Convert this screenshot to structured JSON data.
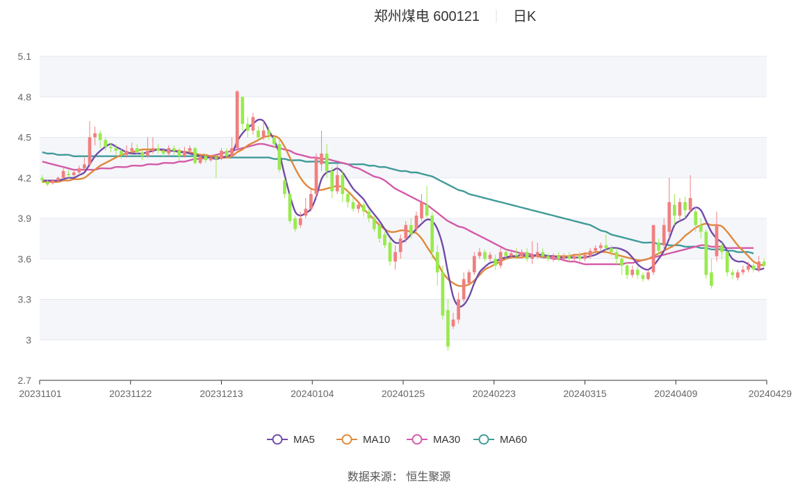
{
  "title": {
    "stock": "郑州煤电 600121",
    "period": "日K"
  },
  "source": "数据来源：  恒生聚源",
  "legend": [
    {
      "name": "MA5",
      "color": "#6f4aa8"
    },
    {
      "name": "MA10",
      "color": "#e0883a"
    },
    {
      "name": "MA30",
      "color": "#d35aa8"
    },
    {
      "name": "MA60",
      "color": "#3f9a98"
    }
  ],
  "colors": {
    "up": "#f07f7f",
    "down": "#99ea4e"
  },
  "chart_data": {
    "type": "candlestick",
    "title": "郑州煤电 600121 日K",
    "ylim": [
      2.7,
      5.1
    ],
    "y_ticks": [
      "2.7",
      "3",
      "3.3",
      "3.6",
      "3.9",
      "4.2",
      "4.5",
      "4.8",
      "5.1"
    ],
    "x_ticks": [
      "20231101",
      "20231122",
      "20231213",
      "20240104",
      "20240125",
      "20240223",
      "20240315",
      "20240409",
      "20240429"
    ],
    "grid": true,
    "legend_position": "bottom",
    "candles": [
      [
        4.2,
        4.18,
        4.22,
        4.16
      ],
      [
        4.17,
        4.15,
        4.19,
        4.14
      ],
      [
        4.16,
        4.18,
        4.19,
        4.15
      ],
      [
        4.18,
        4.2,
        4.21,
        4.17
      ],
      [
        4.2,
        4.25,
        4.27,
        4.19
      ],
      [
        4.23,
        4.22,
        4.26,
        4.2
      ],
      [
        4.22,
        4.24,
        4.26,
        4.21
      ],
      [
        4.24,
        4.27,
        4.29,
        4.22
      ],
      [
        4.27,
        4.3,
        4.35,
        4.25
      ],
      [
        4.3,
        4.5,
        4.62,
        4.28
      ],
      [
        4.5,
        4.53,
        4.58,
        4.44
      ],
      [
        4.53,
        4.48,
        4.55,
        4.42
      ],
      [
        4.48,
        4.43,
        4.5,
        4.4
      ],
      [
        4.43,
        4.42,
        4.46,
        4.39
      ],
      [
        4.42,
        4.4,
        4.45,
        4.37
      ],
      [
        4.4,
        4.37,
        4.42,
        4.34
      ],
      [
        4.37,
        4.4,
        4.44,
        4.35
      ],
      [
        4.4,
        4.42,
        4.46,
        4.38
      ],
      [
        4.42,
        4.39,
        4.45,
        4.36
      ],
      [
        4.39,
        4.36,
        4.41,
        4.33
      ],
      [
        4.36,
        4.4,
        4.5,
        4.35
      ],
      [
        4.4,
        4.42,
        4.5,
        4.38
      ],
      [
        4.42,
        4.4,
        4.45,
        4.38
      ],
      [
        4.4,
        4.38,
        4.42,
        4.35
      ],
      [
        4.38,
        4.42,
        4.44,
        4.36
      ],
      [
        4.42,
        4.4,
        4.44,
        4.37
      ],
      [
        4.4,
        4.36,
        4.42,
        4.33
      ],
      [
        4.36,
        4.4,
        4.43,
        4.35
      ],
      [
        4.4,
        4.42,
        4.44,
        4.38
      ],
      [
        4.42,
        4.31,
        4.43,
        4.3
      ],
      [
        4.31,
        4.36,
        4.38,
        4.3
      ],
      [
        4.36,
        4.33,
        4.38,
        4.31
      ],
      [
        4.33,
        4.35,
        4.37,
        4.32
      ],
      [
        4.35,
        4.34,
        4.37,
        4.2
      ],
      [
        4.34,
        4.4,
        4.42,
        4.33
      ],
      [
        4.4,
        4.36,
        4.42,
        4.35
      ],
      [
        4.36,
        4.42,
        4.5,
        4.35
      ],
      [
        4.42,
        4.84,
        4.85,
        4.4
      ],
      [
        4.8,
        4.6,
        4.8,
        4.55
      ],
      [
        4.6,
        4.55,
        4.65,
        4.5
      ],
      [
        4.55,
        4.65,
        4.68,
        4.52
      ],
      [
        4.55,
        4.5,
        4.58,
        4.48
      ],
      [
        4.5,
        4.55,
        4.62,
        4.48
      ],
      [
        4.55,
        4.52,
        4.58,
        4.48
      ],
      [
        4.5,
        4.45,
        4.5,
        4.42
      ],
      [
        4.45,
        4.26,
        4.48,
        4.24
      ],
      [
        4.18,
        4.08,
        4.2,
        4.05
      ],
      [
        4.08,
        3.88,
        4.1,
        3.86
      ],
      [
        3.9,
        3.82,
        3.92,
        3.8
      ],
      [
        3.85,
        3.9,
        3.95,
        3.83
      ],
      [
        3.92,
        3.97,
        4.05,
        3.9
      ],
      [
        3.97,
        4.08,
        4.12,
        3.95
      ],
      [
        4.08,
        4.35,
        4.38,
        4.05
      ],
      [
        4.3,
        4.38,
        4.55,
        4.25
      ],
      [
        4.38,
        4.25,
        4.45,
        4.2
      ],
      [
        4.25,
        4.1,
        4.28,
        4.05
      ],
      [
        4.1,
        4.22,
        4.3,
        4.08
      ],
      [
        4.22,
        4.08,
        4.25,
        4.02
      ],
      [
        4.08,
        4.02,
        4.1,
        3.98
      ],
      [
        4.02,
        3.97,
        4.05,
        3.95
      ],
      [
        3.97,
        4.0,
        4.03,
        3.94
      ],
      [
        4.0,
        3.95,
        4.02,
        3.91
      ],
      [
        3.95,
        3.9,
        3.97,
        3.87
      ],
      [
        3.9,
        3.82,
        3.92,
        3.8
      ],
      [
        3.85,
        3.75,
        3.85,
        3.72
      ],
      [
        3.78,
        3.7,
        3.8,
        3.68
      ],
      [
        3.72,
        3.58,
        3.75,
        3.55
      ],
      [
        3.58,
        3.65,
        3.7,
        3.52
      ],
      [
        3.65,
        3.75,
        3.78,
        3.6
      ],
      [
        3.75,
        3.85,
        3.88,
        3.72
      ],
      [
        3.85,
        3.78,
        3.9,
        3.75
      ],
      [
        3.82,
        3.92,
        3.95,
        3.8
      ],
      [
        3.9,
        4.02,
        4.08,
        3.88
      ],
      [
        4.0,
        3.92,
        4.14,
        3.9
      ],
      [
        3.92,
        3.65,
        3.95,
        3.6
      ],
      [
        3.65,
        3.5,
        3.7,
        3.4
      ],
      [
        3.5,
        3.18,
        3.55,
        3.15
      ],
      [
        3.22,
        2.95,
        3.3,
        2.92
      ],
      [
        3.1,
        3.15,
        3.2,
        3.08
      ],
      [
        3.15,
        3.3,
        3.35,
        3.12
      ],
      [
        3.3,
        3.45,
        3.5,
        3.28
      ],
      [
        3.42,
        3.5,
        3.52,
        3.4
      ],
      [
        3.5,
        3.62,
        3.65,
        3.48
      ],
      [
        3.62,
        3.65,
        3.68,
        3.6
      ],
      [
        3.65,
        3.6,
        3.67,
        3.58
      ],
      [
        3.6,
        3.63,
        3.65,
        3.58
      ],
      [
        3.6,
        3.55,
        3.63,
        3.52
      ],
      [
        3.55,
        3.65,
        3.68,
        3.53
      ],
      [
        3.65,
        3.62,
        3.67,
        3.6
      ],
      [
        3.62,
        3.64,
        3.66,
        3.6
      ],
      [
        3.63,
        3.62,
        3.68,
        3.6
      ],
      [
        3.62,
        3.65,
        3.67,
        3.6
      ],
      [
        3.65,
        3.6,
        3.68,
        3.58
      ],
      [
        3.6,
        3.63,
        3.73,
        3.56
      ],
      [
        3.62,
        3.65,
        3.72,
        3.6
      ],
      [
        3.65,
        3.62,
        3.68,
        3.6
      ],
      [
        3.62,
        3.6,
        3.64,
        3.58
      ],
      [
        3.6,
        3.62,
        3.64,
        3.58
      ],
      [
        3.62,
        3.6,
        3.65,
        3.58
      ],
      [
        3.6,
        3.62,
        3.64,
        3.58
      ],
      [
        3.62,
        3.6,
        3.65,
        3.58
      ],
      [
        3.6,
        3.62,
        3.63,
        3.58
      ],
      [
        3.62,
        3.6,
        3.65,
        3.58
      ],
      [
        3.6,
        3.63,
        3.65,
        3.58
      ],
      [
        3.62,
        3.66,
        3.68,
        3.6
      ],
      [
        3.66,
        3.68,
        3.7,
        3.64
      ],
      [
        3.68,
        3.7,
        3.72,
        3.66
      ],
      [
        3.7,
        3.68,
        3.78,
        3.66
      ],
      [
        3.68,
        3.65,
        3.7,
        3.62
      ],
      [
        3.65,
        3.6,
        3.68,
        3.56
      ],
      [
        3.6,
        3.55,
        3.62,
        3.48
      ],
      [
        3.55,
        3.48,
        3.58,
        3.45
      ],
      [
        3.48,
        3.52,
        3.55,
        3.46
      ],
      [
        3.52,
        3.48,
        3.55,
        3.45
      ],
      [
        3.48,
        3.45,
        3.5,
        3.43
      ],
      [
        3.45,
        3.5,
        3.52,
        3.44
      ],
      [
        3.5,
        3.85,
        3.85,
        3.48
      ],
      [
        3.72,
        3.66,
        3.75,
        3.63
      ],
      [
        3.7,
        3.85,
        3.9,
        3.66
      ],
      [
        3.8,
        4.02,
        4.2,
        3.75
      ],
      [
        4.0,
        3.92,
        4.08,
        3.85
      ],
      [
        3.92,
        4.02,
        4.05,
        3.88
      ],
      [
        4.02,
        3.96,
        4.06,
        3.9
      ],
      [
        3.96,
        4.05,
        4.22,
        3.94
      ],
      [
        3.95,
        3.85,
        3.98,
        3.8
      ],
      [
        3.85,
        3.8,
        3.9,
        3.75
      ],
      [
        3.8,
        3.48,
        3.82,
        3.45
      ],
      [
        3.5,
        3.4,
        3.6,
        3.38
      ],
      [
        3.62,
        3.85,
        3.95,
        3.58
      ],
      [
        3.7,
        3.65,
        3.72,
        3.6
      ],
      [
        3.65,
        3.5,
        3.66,
        3.47
      ],
      [
        3.5,
        3.48,
        3.52,
        3.45
      ],
      [
        3.46,
        3.5,
        3.52,
        3.44
      ],
      [
        3.5,
        3.52,
        3.55,
        3.48
      ],
      [
        3.52,
        3.55,
        3.58,
        3.5
      ],
      [
        3.55,
        3.52,
        3.57,
        3.5
      ],
      [
        3.52,
        3.58,
        3.62,
        3.5
      ],
      [
        3.58,
        3.55,
        3.6,
        3.54
      ]
    ],
    "series": [
      {
        "name": "MA5",
        "values": [
          4.18,
          4.18,
          4.18,
          4.18,
          4.19,
          4.2,
          4.2,
          4.22,
          4.24,
          4.3,
          4.36,
          4.4,
          4.43,
          4.45,
          4.43,
          4.41,
          4.39,
          4.38,
          4.38,
          4.38,
          4.39,
          4.4,
          4.41,
          4.41,
          4.4,
          4.4,
          4.39,
          4.39,
          4.38,
          4.37,
          4.36,
          4.35,
          4.35,
          4.34,
          4.35,
          4.36,
          4.38,
          4.47,
          4.53,
          4.57,
          4.6,
          4.63,
          4.62,
          4.55,
          4.48,
          4.38,
          4.22,
          4.07,
          3.95,
          3.92,
          3.94,
          3.97,
          4.06,
          4.19,
          4.24,
          4.25,
          4.27,
          4.24,
          4.18,
          4.12,
          4.08,
          4.04,
          3.98,
          3.93,
          3.88,
          3.82,
          3.76,
          3.72,
          3.72,
          3.74,
          3.78,
          3.82,
          3.86,
          3.89,
          3.88,
          3.82,
          3.7,
          3.5,
          3.32,
          3.25,
          3.26,
          3.32,
          3.42,
          3.5,
          3.54,
          3.57,
          3.58,
          3.6,
          3.61,
          3.62,
          3.62,
          3.63,
          3.62,
          3.62,
          3.63,
          3.63,
          3.62,
          3.62,
          3.61,
          3.61,
          3.61,
          3.61,
          3.61,
          3.61,
          3.62,
          3.63,
          3.65,
          3.67,
          3.68,
          3.68,
          3.67,
          3.65,
          3.61,
          3.56,
          3.53,
          3.52,
          3.55,
          3.6,
          3.66,
          3.75,
          3.85,
          3.88,
          3.9,
          3.95,
          3.98,
          3.96,
          3.88,
          3.8,
          3.75,
          3.72,
          3.66,
          3.6,
          3.58,
          3.58,
          3.56,
          3.53,
          3.52,
          3.53
        ]
      },
      {
        "name": "MA10",
        "values": [
          4.17,
          4.17,
          4.17,
          4.17,
          4.18,
          4.18,
          4.19,
          4.19,
          4.2,
          4.23,
          4.26,
          4.29,
          4.31,
          4.33,
          4.35,
          4.37,
          4.38,
          4.39,
          4.4,
          4.41,
          4.41,
          4.41,
          4.41,
          4.4,
          4.4,
          4.4,
          4.4,
          4.39,
          4.39,
          4.38,
          4.37,
          4.37,
          4.36,
          4.36,
          4.35,
          4.35,
          4.36,
          4.39,
          4.41,
          4.44,
          4.46,
          4.48,
          4.5,
          4.51,
          4.51,
          4.49,
          4.43,
          4.35,
          4.27,
          4.2,
          4.15,
          4.12,
          4.11,
          4.11,
          4.12,
          4.13,
          4.14,
          4.13,
          4.1,
          4.06,
          4.02,
          3.97,
          3.93,
          3.89,
          3.85,
          3.82,
          3.8,
          3.8,
          3.81,
          3.81,
          3.8,
          3.79,
          3.75,
          3.69,
          3.63,
          3.57,
          3.5,
          3.45,
          3.42,
          3.4,
          3.4,
          3.41,
          3.44,
          3.48,
          3.52,
          3.54,
          3.56,
          3.58,
          3.6,
          3.61,
          3.61,
          3.61,
          3.62,
          3.62,
          3.62,
          3.62,
          3.62,
          3.62,
          3.62,
          3.62,
          3.62,
          3.63,
          3.63,
          3.64,
          3.64,
          3.65,
          3.65,
          3.65,
          3.64,
          3.63,
          3.62,
          3.61,
          3.6,
          3.59,
          3.59,
          3.6,
          3.62,
          3.64,
          3.66,
          3.68,
          3.7,
          3.73,
          3.77,
          3.8,
          3.83,
          3.85,
          3.86,
          3.85,
          3.85,
          3.84,
          3.8,
          3.75,
          3.7,
          3.66,
          3.62,
          3.58,
          3.56,
          3.55
        ]
      },
      {
        "name": "MA30",
        "values": [
          4.32,
          4.31,
          4.3,
          4.29,
          4.28,
          4.27,
          4.26,
          4.26,
          4.26,
          4.26,
          4.26,
          4.27,
          4.27,
          4.27,
          4.28,
          4.28,
          4.28,
          4.29,
          4.29,
          4.29,
          4.3,
          4.3,
          4.3,
          4.31,
          4.31,
          4.31,
          4.32,
          4.32,
          4.33,
          4.34,
          4.34,
          4.35,
          4.36,
          4.37,
          4.38,
          4.39,
          4.4,
          4.41,
          4.42,
          4.43,
          4.44,
          4.45,
          4.45,
          4.44,
          4.43,
          4.42,
          4.41,
          4.4,
          4.38,
          4.37,
          4.36,
          4.35,
          4.35,
          4.34,
          4.34,
          4.33,
          4.32,
          4.31,
          4.3,
          4.28,
          4.27,
          4.25,
          4.23,
          4.21,
          4.2,
          4.18,
          4.15,
          4.12,
          4.1,
          4.08,
          4.06,
          4.04,
          4.02,
          4.0,
          3.97,
          3.94,
          3.91,
          3.88,
          3.86,
          3.84,
          3.83,
          3.81,
          3.79,
          3.77,
          3.75,
          3.73,
          3.71,
          3.69,
          3.67,
          3.66,
          3.65,
          3.64,
          3.64,
          3.63,
          3.62,
          3.61,
          3.61,
          3.6,
          3.6,
          3.59,
          3.58,
          3.58,
          3.57,
          3.56,
          3.56,
          3.56,
          3.56,
          3.56,
          3.56,
          3.56,
          3.56,
          3.57,
          3.57,
          3.58,
          3.59,
          3.6,
          3.61,
          3.62,
          3.63,
          3.64,
          3.65,
          3.66,
          3.67,
          3.68,
          3.69,
          3.7,
          3.7,
          3.69,
          3.69,
          3.69,
          3.68,
          3.68,
          3.68,
          3.68,
          3.68,
          3.68
        ]
      },
      {
        "name": "MA60",
        "values": [
          4.39,
          4.38,
          4.38,
          4.37,
          4.37,
          4.37,
          4.36,
          4.36,
          4.36,
          4.36,
          4.36,
          4.36,
          4.36,
          4.36,
          4.36,
          4.36,
          4.36,
          4.36,
          4.36,
          4.36,
          4.36,
          4.36,
          4.36,
          4.36,
          4.36,
          4.36,
          4.36,
          4.36,
          4.36,
          4.36,
          4.36,
          4.36,
          4.36,
          4.35,
          4.35,
          4.35,
          4.35,
          4.35,
          4.35,
          4.35,
          4.35,
          4.35,
          4.35,
          4.35,
          4.34,
          4.34,
          4.34,
          4.33,
          4.33,
          4.33,
          4.32,
          4.32,
          4.32,
          4.32,
          4.31,
          4.31,
          4.31,
          4.31,
          4.3,
          4.3,
          4.3,
          4.3,
          4.29,
          4.29,
          4.28,
          4.28,
          4.27,
          4.26,
          4.25,
          4.25,
          4.24,
          4.24,
          4.23,
          4.22,
          4.21,
          4.19,
          4.17,
          4.15,
          4.13,
          4.11,
          4.1,
          4.08,
          4.07,
          4.06,
          4.05,
          4.04,
          4.03,
          4.02,
          4.01,
          4.0,
          3.99,
          3.98,
          3.97,
          3.96,
          3.95,
          3.94,
          3.93,
          3.92,
          3.91,
          3.9,
          3.89,
          3.88,
          3.87,
          3.86,
          3.85,
          3.83,
          3.81,
          3.8,
          3.78,
          3.77,
          3.76,
          3.75,
          3.74,
          3.73,
          3.72,
          3.72,
          3.72,
          3.71,
          3.71,
          3.7,
          3.7,
          3.7,
          3.69,
          3.69,
          3.69,
          3.68,
          3.68,
          3.67,
          3.67,
          3.67,
          3.66,
          3.66,
          3.65,
          3.65,
          3.65,
          3.64
        ]
      }
    ]
  }
}
